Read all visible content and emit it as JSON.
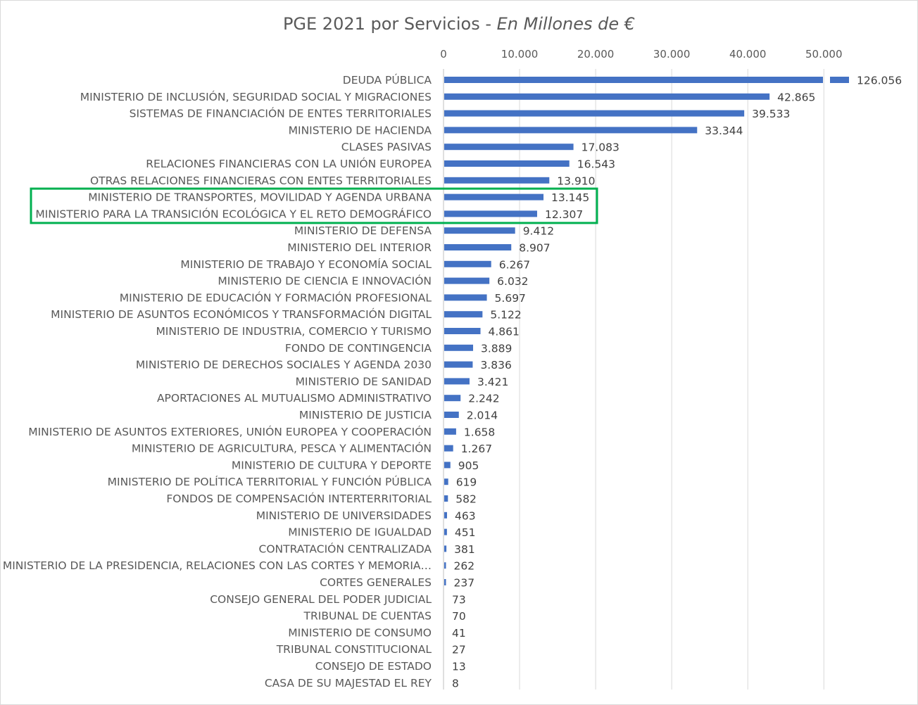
{
  "chart_data": {
    "type": "bar",
    "orientation": "horizontal",
    "title": "PGE 2021 por Servicios",
    "title_separator": " - ",
    "subtitle": "En Millones de €",
    "xlim": [
      0,
      53000
    ],
    "xticks": [
      0,
      10000,
      20000,
      30000,
      40000,
      50000
    ],
    "xtick_labels": [
      "0",
      "10.000",
      "20.000",
      "30.000",
      "40.000",
      "50.000"
    ],
    "axis_break": {
      "value": 126056,
      "display_cap": 53000,
      "label": "126.056"
    },
    "grid": true,
    "bar_color": "#4472c4",
    "highlight_color": "#00b050",
    "highlighted_categories": [
      "MINISTERIO DE TRANSPORTES, MOVILIDAD Y AGENDA URBANA",
      "MINISTERIO PARA LA TRANSICIÓN ECOLÓGICA Y EL RETO DEMOGRÁFICO"
    ],
    "categories": [
      "DEUDA PÚBLICA",
      "MINISTERIO DE INCLUSIÓN, SEGURIDAD SOCIAL Y MIGRACIONES",
      "SISTEMAS DE FINANCIACIÓN DE ENTES TERRITORIALES",
      "MINISTERIO DE HACIENDA",
      "CLASES PASIVAS",
      "RELACIONES FINANCIERAS CON LA UNIÓN EUROPEA",
      "OTRAS RELACIONES FINANCIERAS CON ENTES TERRITORIALES",
      "MINISTERIO DE TRANSPORTES, MOVILIDAD Y AGENDA URBANA",
      "MINISTERIO PARA LA TRANSICIÓN ECOLÓGICA Y EL RETO DEMOGRÁFICO",
      "MINISTERIO DE DEFENSA",
      "MINISTERIO DEL INTERIOR",
      "MINISTERIO DE TRABAJO Y ECONOMÍA SOCIAL",
      "MINISTERIO DE CIENCIA E INNOVACIÓN",
      "MINISTERIO DE EDUCACIÓN Y FORMACIÓN PROFESIONAL",
      "MINISTERIO DE ASUNTOS ECONÓMICOS Y TRANSFORMACIÓN DIGITAL",
      "MINISTERIO DE INDUSTRIA, COMERCIO Y TURISMO",
      "FONDO DE CONTINGENCIA",
      "MINISTERIO DE DERECHOS SOCIALES Y AGENDA 2030",
      "MINISTERIO DE SANIDAD",
      "APORTACIONES AL MUTUALISMO ADMINISTRATIVO",
      "MINISTERIO DE JUSTICIA",
      "MINISTERIO DE ASUNTOS EXTERIORES, UNIÓN EUROPEA Y COOPERACIÓN",
      "MINISTERIO DE AGRICULTURA, PESCA Y ALIMENTACIÓN",
      "MINISTERIO DE CULTURA Y DEPORTE",
      "MINISTERIO DE POLÍTICA TERRITORIAL Y FUNCIÓN PÚBLICA",
      "FONDOS DE COMPENSACIÓN INTERTERRITORIAL",
      "MINISTERIO DE UNIVERSIDADES",
      "MINISTERIO DE IGUALDAD",
      "CONTRATACIÓN CENTRALIZADA",
      "MINISTERIO DE LA PRESIDENCIA, RELACIONES CON LAS CORTES Y MEMORIA…",
      "CORTES GENERALES",
      "CONSEJO GENERAL DEL PODER JUDICIAL",
      "TRIBUNAL DE CUENTAS",
      "MINISTERIO DE CONSUMO",
      "TRIBUNAL CONSTITUCIONAL",
      "CONSEJO DE ESTADO",
      "CASA DE SU MAJESTAD EL REY"
    ],
    "values": [
      126056,
      42865,
      39533,
      33344,
      17083,
      16543,
      13910,
      13145,
      12307,
      9412,
      8907,
      6267,
      6032,
      5697,
      5122,
      4861,
      3889,
      3836,
      3421,
      2242,
      2014,
      1658,
      1267,
      905,
      619,
      582,
      463,
      451,
      381,
      262,
      237,
      73,
      70,
      41,
      27,
      13,
      8
    ],
    "value_labels": [
      "126.056",
      "42.865",
      "39.533",
      "33.344",
      "17.083",
      "16.543",
      "13.910",
      "13.145",
      "12.307",
      "9.412",
      "8.907",
      "6.267",
      "6.032",
      "5.697",
      "5.122",
      "4.861",
      "3.889",
      "3.836",
      "3.421",
      "2.242",
      "2.014",
      "1.658",
      "1.267",
      "905",
      "619",
      "582",
      "463",
      "451",
      "381",
      "262",
      "237",
      "73",
      "70",
      "41",
      "27",
      "13",
      "8"
    ]
  }
}
